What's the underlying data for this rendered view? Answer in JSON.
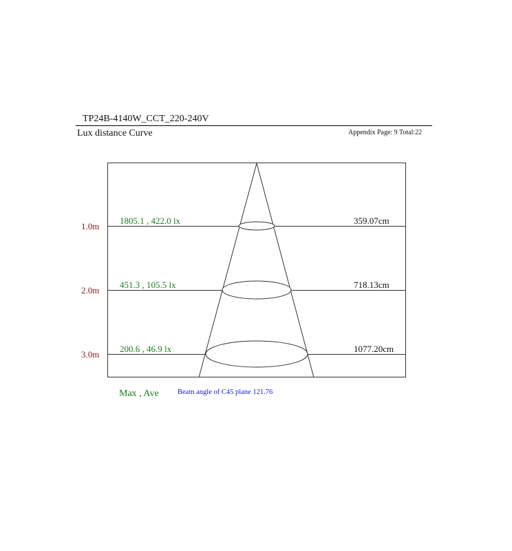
{
  "header": {
    "title": "TP24B-4140W_CCT_220-240V",
    "subtitle": "Lux distance Curve",
    "page_info": "Appendix Page: 9  Total:22"
  },
  "chart_data": {
    "type": "table",
    "rows": [
      {
        "distance": "1.0m",
        "lux": "1805.1 , 422.0 lx",
        "diameter": "359.07cm"
      },
      {
        "distance": "2.0m",
        "lux": "451.3 , 105.5 lx",
        "diameter": "718.13cm"
      },
      {
        "distance": "3.0m",
        "lux": "200.6 , 46.9 lx",
        "diameter": "1077.20cm"
      }
    ],
    "legend": "Max , Ave",
    "beam_angle_label": "Beam angle of C45 plane 121.76",
    "colors": {
      "distance": "#8b1a1a",
      "lux": "#1f7a1f",
      "beam": "#1a1acc"
    }
  }
}
